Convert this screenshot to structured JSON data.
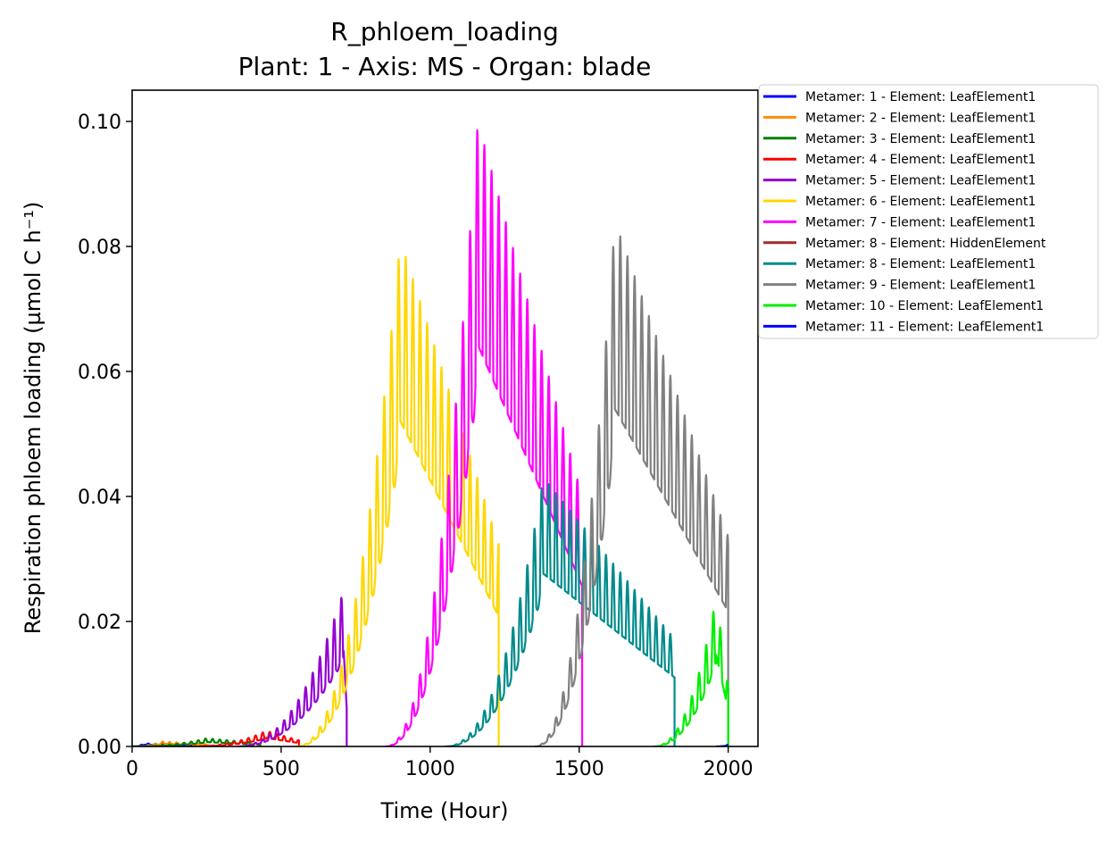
{
  "chart_data": {
    "type": "line",
    "title": "R_phloem_loading",
    "subtitle": "Plant: 1 - Axis: MS - Organ: blade",
    "xlabel": "Time (Hour)",
    "ylabel": "Respiration phloem loading (µmol C h⁻¹)",
    "xlim": [
      0,
      2100
    ],
    "ylim": [
      0,
      0.105
    ],
    "xticks": [
      0,
      500,
      1000,
      1500,
      2000
    ],
    "xtick_labels": [
      "0",
      "500",
      "1000",
      "1500",
      "2000"
    ],
    "yticks": [
      0,
      0.02,
      0.04,
      0.06,
      0.08,
      0.1
    ],
    "ytick_labels": [
      "0.00",
      "0.02",
      "0.04",
      "0.06",
      "0.08",
      "0.10"
    ],
    "grid": false,
    "legend_position": "outside-right-top",
    "series": [
      {
        "name": "Metamer: 1 - Element: LeafElement1",
        "color": "#0000ff",
        "start": 0,
        "peak_t": 40,
        "end": 200,
        "peak": 0.0005,
        "rise": 0.7
      },
      {
        "name": "Metamer: 2 - Element: LeafElement1",
        "color": "#ff8c00",
        "start": 0,
        "peak_t": 100,
        "end": 260,
        "peak": 0.0008,
        "rise": 0.7
      },
      {
        "name": "Metamer: 3 - Element: LeafElement1",
        "color": "#008000",
        "start": 0,
        "peak_t": 250,
        "end": 430,
        "peak": 0.0013,
        "rise": 0.7
      },
      {
        "name": "Metamer: 4 - Element: LeafElement1",
        "color": "#ff0000",
        "start": 200,
        "peak_t": 450,
        "end": 560,
        "peak": 0.0025,
        "rise": 0.7
      },
      {
        "name": "Metamer: 5 - Element: LeafElement1",
        "color": "#9400d3",
        "start": 350,
        "peak_t": 710,
        "end": 720,
        "peak": 0.025,
        "rise": 0.6
      },
      {
        "name": "Metamer: 6 - Element: LeafElement1",
        "color": "#ffd700",
        "start": 550,
        "peak_t": 900,
        "end": 1230,
        "peak": 0.081,
        "rise": 0.55
      },
      {
        "name": "Metamer: 7 - Element: LeafElement1",
        "color": "#ff00ff",
        "start": 850,
        "peak_t": 1160,
        "end": 1510,
        "peak": 0.1,
        "rise": 0.55
      },
      {
        "name": "Metamer: 8 - Element: HiddenElement",
        "color": "#a52a2a",
        "start": 0,
        "peak_t": 0,
        "end": 0,
        "peak": 0,
        "rise": 0.5
      },
      {
        "name": "Metamer: 8 - Element: LeafElement1",
        "color": "#008b8b",
        "start": 1050,
        "peak_t": 1380,
        "end": 1820,
        "peak": 0.043,
        "rise": 0.55
      },
      {
        "name": "Metamer: 9 - Element: LeafElement1",
        "color": "#808080",
        "start": 1350,
        "peak_t": 1620,
        "end": 2000,
        "peak": 0.084,
        "rise": 0.55
      },
      {
        "name": "Metamer: 10 - Element: LeafElement1",
        "color": "#00ee00",
        "start": 1750,
        "peak_t": 1960,
        "end": 2000,
        "peak": 0.024,
        "rise": 0.6
      },
      {
        "name": "Metamer: 11 - Element: LeafElement1",
        "color": "#0000ff",
        "start": 1960,
        "peak_t": 2000,
        "end": 2000,
        "peak": 0.0003,
        "rise": 0.5
      }
    ]
  }
}
